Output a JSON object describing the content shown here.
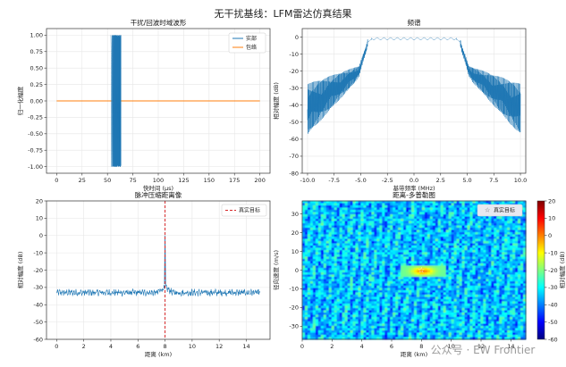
{
  "suptitle": "无干扰基线：LFM雷达仿真结果",
  "watermark": "公众号 · EW Frontier",
  "colors": {
    "blue": "#1f77b4",
    "orange": "#ff7f0e",
    "red": "#d62728",
    "grid": "#e6e6e6"
  },
  "chart_data": [
    {
      "type": "line",
      "title": "干扰/回波时域波形",
      "xlabel": "快时间 (μs)",
      "ylabel": "归一化幅度",
      "xlim": [
        -10,
        210
      ],
      "ylim": [
        -1.1,
        1.1
      ],
      "xticks": [
        0,
        25,
        50,
        75,
        100,
        125,
        150,
        175,
        200
      ],
      "yticks": [
        -1.0,
        -0.75,
        -0.5,
        -0.25,
        0.0,
        0.25,
        0.5,
        0.75,
        1.0
      ],
      "ytick_labels": [
        "-1.00",
        "-0.75",
        "-0.50",
        "-0.25",
        "0.00",
        "0.25",
        "0.50",
        "0.75",
        "1.00"
      ],
      "grid": true,
      "legend_position": "top-right",
      "series": [
        {
          "name": "实部",
          "color": "#1f77b4",
          "pulse_start": 53.3,
          "pulse_end": 63.3,
          "amplitude": 1.0
        },
        {
          "name": "包络",
          "color": "#ff7f0e",
          "value": 0.0,
          "x": [
            0,
            200
          ]
        }
      ]
    },
    {
      "type": "line",
      "title": "频谱",
      "xlabel": "基带频率 (MHz)",
      "ylabel": "相对幅度 (dB)",
      "xlim": [
        -10.5,
        10.5
      ],
      "ylim": [
        -80,
        5
      ],
      "xticks": [
        -10.0,
        -7.5,
        -5.0,
        -2.5,
        0.0,
        2.5,
        5.0,
        7.5,
        10.0
      ],
      "xtick_labels": [
        "-10.0",
        "-7.5",
        "-5.0",
        "-2.5",
        "0.0",
        "2.5",
        "5.0",
        "7.5",
        "10.0"
      ],
      "yticks": [
        0,
        -10,
        -20,
        -30,
        -40,
        -50,
        -60,
        -70,
        -80
      ],
      "grid": true,
      "series": [
        {
          "color": "#1f77b4",
          "passband": [
            -4.5,
            4.5
          ],
          "passband_level": -1.5,
          "edge_level": -25,
          "floor_level": -55,
          "x_range": [
            -10,
            10
          ]
        }
      ]
    },
    {
      "type": "line",
      "title": "脉冲压缩距离像",
      "xlabel": "距离 (km)",
      "ylabel": "相对幅度 (dB)",
      "xlim": [
        -0.75,
        15.75
      ],
      "ylim": [
        -60,
        20
      ],
      "xticks": [
        0,
        2,
        4,
        6,
        8,
        10,
        12,
        14
      ],
      "yticks": [
        20,
        10,
        0,
        -10,
        -20,
        -30,
        -40,
        -50,
        -60
      ],
      "grid": true,
      "legend_position": "top-right",
      "series": [
        {
          "color": "#1f77b4",
          "noise_level": -33,
          "peak_x": 8,
          "peak_value": 0,
          "x_range": [
            0,
            15
          ]
        }
      ],
      "vline": {
        "name": "真实目标",
        "x": 8,
        "color": "#d62728",
        "style": "dashed"
      }
    },
    {
      "type": "heatmap",
      "title": "距离-多普勒图",
      "xlabel": "距离 (km)",
      "ylabel": "径向速度 (m/s)",
      "xlim": [
        0,
        15
      ],
      "ylim": [
        -37,
        37
      ],
      "xticks": [
        0,
        2,
        4,
        6,
        8,
        10,
        12,
        14
      ],
      "yticks": [
        30,
        20,
        10,
        0,
        -10,
        -20,
        -30
      ],
      "colorbar": {
        "label": "相对幅度 (dB)",
        "range": [
          -60,
          20
        ],
        "ticks": [
          20,
          10,
          0,
          -10,
          -20,
          -30,
          -40,
          -50,
          -60
        ]
      },
      "target": {
        "name": "真实目标",
        "x": 8,
        "y": 0,
        "value": 0
      },
      "background_level": -35
    }
  ]
}
